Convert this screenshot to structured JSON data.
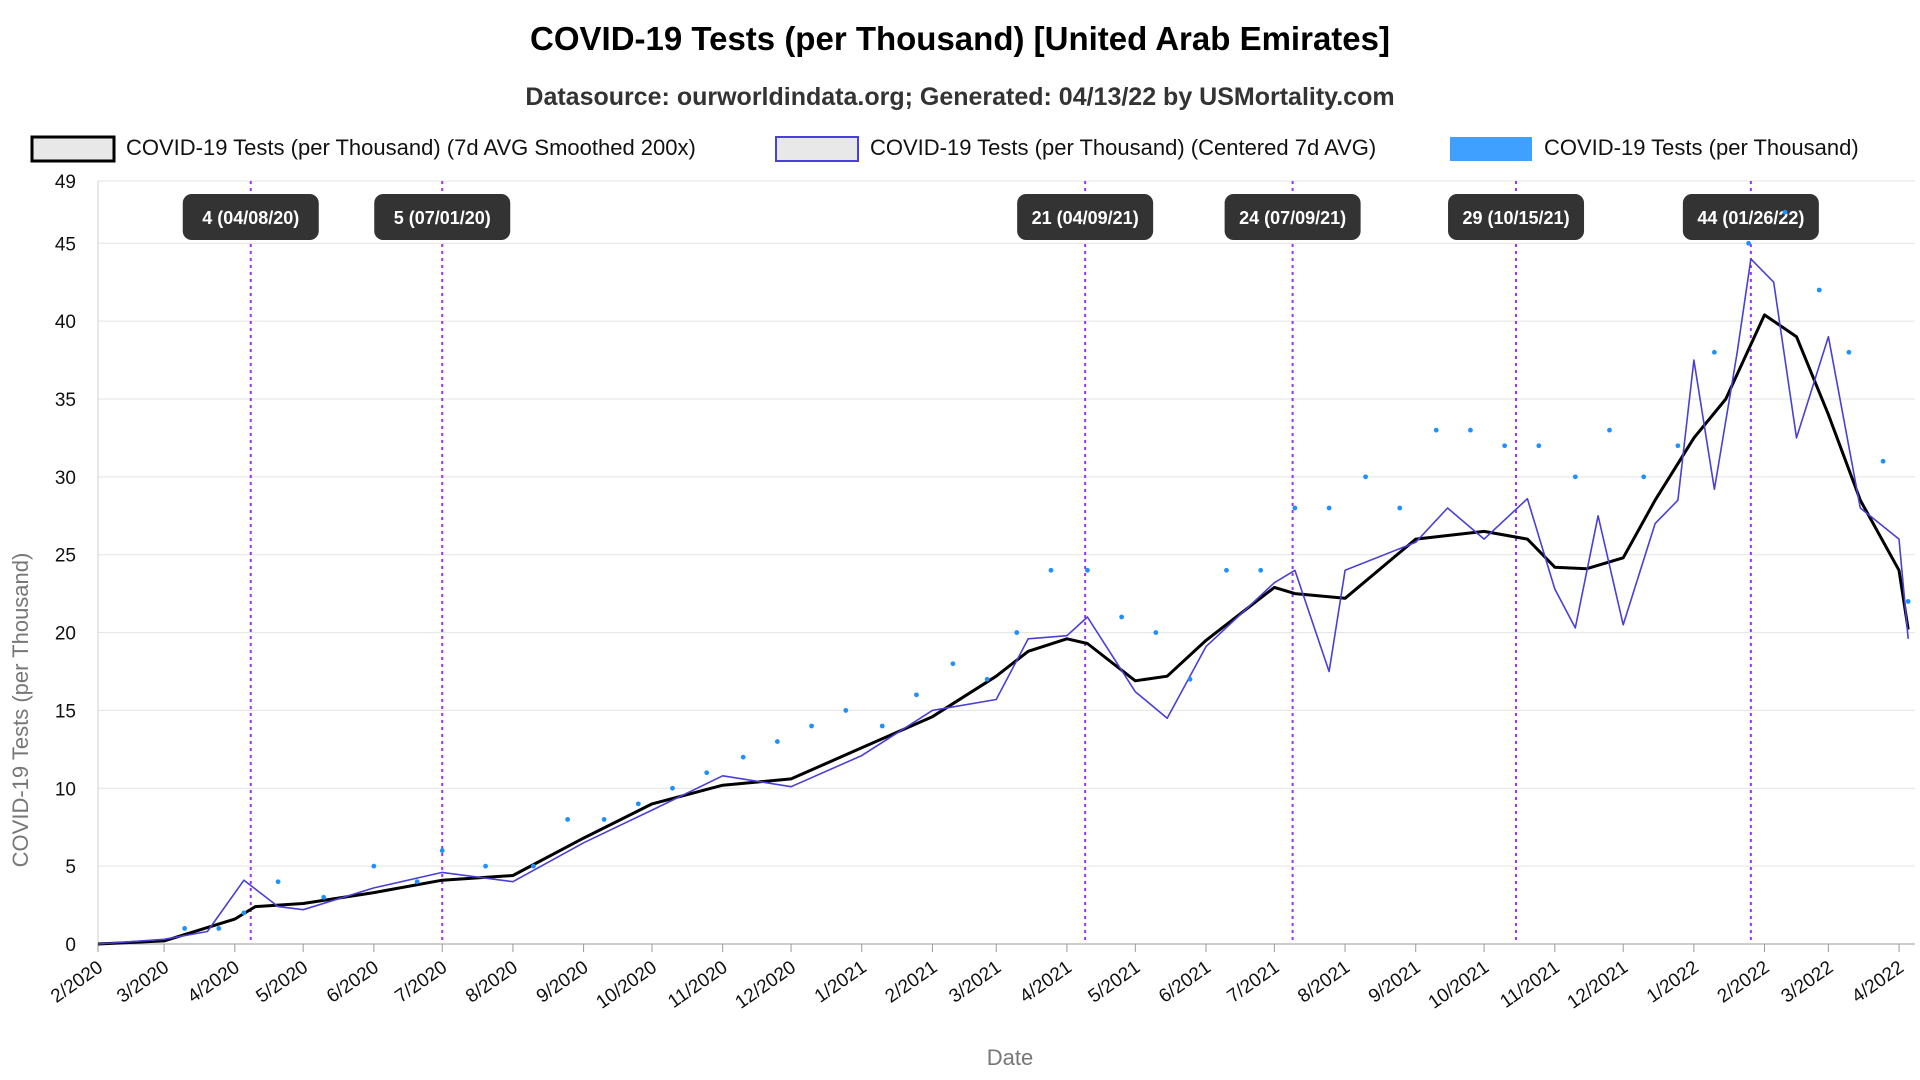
{
  "chart_data": {
    "type": "line",
    "title": "COVID-19 Tests (per Thousand) [United Arab Emirates]",
    "subtitle": "Datasource: ourworldindata.org; Generated: 04/13/22 by USMortality.com",
    "xlabel": "Date",
    "ylabel": "COVID-19 Tests (per Thousand)",
    "ylim": [
      0,
      49
    ],
    "yticks": [
      0,
      5,
      10,
      15,
      20,
      25,
      30,
      35,
      40,
      45,
      49
    ],
    "x_tick_labels": [
      "2/2020",
      "3/2020",
      "4/2020",
      "5/2020",
      "6/2020",
      "7/2020",
      "8/2020",
      "9/2020",
      "10/2020",
      "11/2020",
      "12/2020",
      "1/2021",
      "2/2021",
      "3/2021",
      "4/2021",
      "5/2021",
      "6/2021",
      "7/2021",
      "8/2021",
      "9/2021",
      "10/2021",
      "11/2021",
      "12/2021",
      "1/2022",
      "2/2022",
      "3/2022",
      "4/2022"
    ],
    "grid": true,
    "legend_position": "top",
    "series": [
      {
        "name": "COVID-19 Tests (per Thousand) (7d AVG Smoothed 200x)",
        "style": "line",
        "color": "#000000",
        "x": [
          "2020-02-01",
          "2020-03-01",
          "2020-04-01",
          "2020-04-10",
          "2020-05-01",
          "2020-06-01",
          "2020-07-01",
          "2020-08-01",
          "2020-09-01",
          "2020-10-01",
          "2020-11-01",
          "2020-12-01",
          "2021-01-01",
          "2021-02-01",
          "2021-03-01",
          "2021-03-15",
          "2021-04-01",
          "2021-04-10",
          "2021-05-01",
          "2021-05-15",
          "2021-06-01",
          "2021-07-01",
          "2021-07-10",
          "2021-08-01",
          "2021-09-01",
          "2021-10-01",
          "2021-10-20",
          "2021-11-01",
          "2021-11-15",
          "2021-12-01",
          "2021-12-15",
          "2022-01-01",
          "2022-01-15",
          "2022-02-01",
          "2022-02-15",
          "2022-03-01",
          "2022-03-15",
          "2022-04-01",
          "2022-04-05"
        ],
        "values": [
          0,
          0.2,
          1.6,
          2.4,
          2.6,
          3.3,
          4.1,
          4.4,
          6.8,
          9.0,
          10.2,
          10.6,
          12.6,
          14.6,
          17.2,
          18.8,
          19.6,
          19.3,
          16.9,
          17.2,
          19.5,
          22.9,
          22.5,
          22.2,
          26.0,
          26.5,
          26.0,
          24.2,
          24.1,
          24.8,
          28.5,
          32.5,
          35.0,
          40.4,
          39.0,
          34.0,
          28.5,
          24.0,
          20.2
        ]
      },
      {
        "name": "COVID-19 Tests (per Thousand) (Centered 7d AVG)",
        "style": "line",
        "color": "#4a3fd6",
        "x": [
          "2020-02-01",
          "2020-03-01",
          "2020-03-20",
          "2020-04-05",
          "2020-04-20",
          "2020-05-01",
          "2020-06-01",
          "2020-07-01",
          "2020-08-01",
          "2020-09-01",
          "2020-10-01",
          "2020-11-01",
          "2020-12-01",
          "2021-01-01",
          "2021-02-01",
          "2021-03-01",
          "2021-03-15",
          "2021-04-01",
          "2021-04-10",
          "2021-05-01",
          "2021-05-15",
          "2021-06-01",
          "2021-07-01",
          "2021-07-10",
          "2021-07-25",
          "2021-08-01",
          "2021-09-01",
          "2021-09-15",
          "2021-10-01",
          "2021-10-20",
          "2021-11-01",
          "2021-11-10",
          "2021-11-20",
          "2021-12-01",
          "2021-12-15",
          "2021-12-25",
          "2022-01-01",
          "2022-01-10",
          "2022-01-20",
          "2022-01-26",
          "2022-02-05",
          "2022-02-15",
          "2022-03-01",
          "2022-03-15",
          "2022-04-01",
          "2022-04-05"
        ],
        "values": [
          0,
          0.3,
          0.8,
          4.1,
          2.4,
          2.2,
          3.6,
          4.6,
          4.0,
          6.5,
          8.6,
          10.8,
          10.1,
          12.1,
          15.0,
          15.7,
          19.6,
          19.8,
          21.0,
          16.2,
          14.5,
          19.1,
          23.2,
          24.0,
          17.5,
          24.0,
          25.8,
          28.0,
          26.0,
          28.6,
          22.8,
          20.3,
          27.5,
          20.5,
          27.0,
          28.5,
          37.5,
          29.2,
          38.0,
          44.0,
          42.5,
          32.5,
          39.0,
          28.0,
          26.0,
          19.6
        ]
      },
      {
        "name": "COVID-19 Tests (per Thousand)",
        "style": "points",
        "color": "#1e90ff",
        "x": [
          "2020-03-10",
          "2020-03-25",
          "2020-04-05",
          "2020-04-20",
          "2020-05-10",
          "2020-06-01",
          "2020-06-20",
          "2020-07-01",
          "2020-07-20",
          "2020-08-10",
          "2020-08-25",
          "2020-09-10",
          "2020-09-25",
          "2020-10-10",
          "2020-10-25",
          "2020-11-10",
          "2020-11-25",
          "2020-12-10",
          "2020-12-25",
          "2021-01-10",
          "2021-01-25",
          "2021-02-10",
          "2021-02-25",
          "2021-03-10",
          "2021-03-25",
          "2021-04-10",
          "2021-04-25",
          "2021-05-10",
          "2021-05-25",
          "2021-06-10",
          "2021-06-25",
          "2021-07-10",
          "2021-07-25",
          "2021-08-10",
          "2021-08-25",
          "2021-09-10",
          "2021-09-25",
          "2021-10-10",
          "2021-10-25",
          "2021-11-10",
          "2021-11-25",
          "2021-12-10",
          "2021-12-25",
          "2022-01-10",
          "2022-01-25",
          "2022-02-10",
          "2022-02-25",
          "2022-03-10",
          "2022-03-25",
          "2022-04-05"
        ],
        "values": [
          1,
          1,
          2,
          4,
          3,
          5,
          4,
          6,
          5,
          5,
          8,
          8,
          9,
          10,
          11,
          12,
          13,
          14,
          15,
          14,
          16,
          18,
          17,
          20,
          24,
          24,
          21,
          20,
          17,
          24,
          24,
          28,
          28,
          30,
          28,
          33,
          33,
          32,
          32,
          30,
          33,
          30,
          32,
          38,
          45,
          47,
          42,
          38,
          31,
          22
        ]
      }
    ],
    "annotations": [
      {
        "label": "4 (04/08/20)",
        "date": "2020-04-08"
      },
      {
        "label": "5 (07/01/20)",
        "date": "2020-07-01"
      },
      {
        "label": "21 (04/09/21)",
        "date": "2021-04-09"
      },
      {
        "label": "24 (07/09/21)",
        "date": "2021-07-09"
      },
      {
        "label": "29 (10/15/21)",
        "date": "2021-10-15"
      },
      {
        "label": "44 (01/26/22)",
        "date": "2022-01-26"
      }
    ]
  }
}
